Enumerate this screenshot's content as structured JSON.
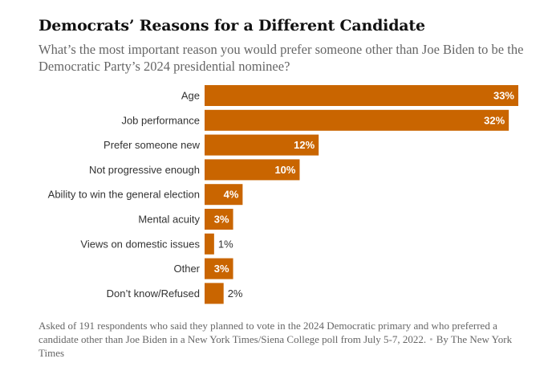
{
  "title": "Democrats’ Reasons for a Different Candidate",
  "subtitle": "What’s the most important reason you would prefer someone other than Joe Biden to be the Democratic Party’s 2024 presidential nominee?",
  "footnote": {
    "text": "Asked of 191 respondents who said they planned to vote in the 2024 Democratic primary and who preferred a candidate other than Joe Biden in a New York Times/Siena College poll from July 5-7, 2022.",
    "credit": "By The New York Times"
  },
  "colors": {
    "bar": "#c96500",
    "label_inside": "#ffffff",
    "label_outside": "#333333"
  },
  "chart_data": {
    "type": "bar",
    "orientation": "horizontal",
    "categories": [
      "Age",
      "Job performance",
      "Prefer someone new",
      "Not progressive enough",
      "Ability to win the general election",
      "Mental acuity",
      "Views on domestic issues",
      "Other",
      "Don’t know/Refused"
    ],
    "values": [
      33,
      32,
      12,
      10,
      4,
      3,
      1,
      3,
      2
    ],
    "value_labels": [
      "33%",
      "32%",
      "12%",
      "10%",
      "4%",
      "3%",
      "1%",
      "3%",
      "2%"
    ],
    "xlim": [
      0,
      33
    ],
    "grid": false,
    "legend": "none"
  }
}
